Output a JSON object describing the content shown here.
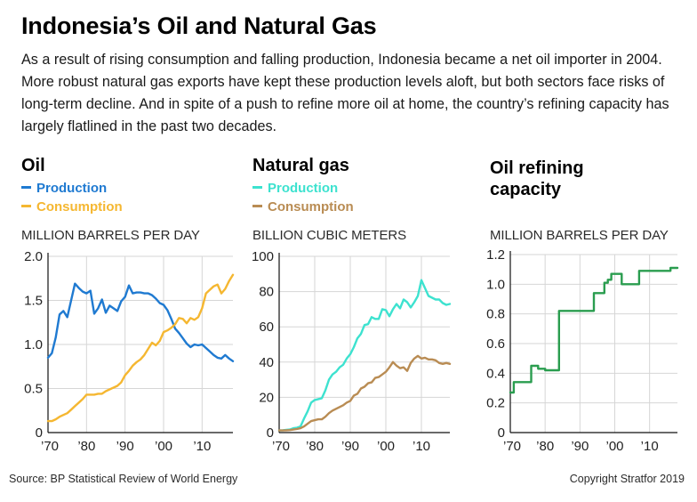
{
  "header": {
    "title": "Indonesia’s Oil and Natural Gas",
    "subtitle": "As a result of rising consumption and falling production, Indonesia became a net oil importer in 2004. More robust natural gas exports have kept these production levels aloft, but both sectors face risks of long-term decline. And in spite of a push to refine more oil at home, the country’s refining capacity has largely flatlined in the past two decades."
  },
  "footer": {
    "source": "Source: BP Statistical Review of World Energy",
    "copyright": "Copyright Stratfor 2019"
  },
  "colors": {
    "oil_production": "#1f7ad1",
    "oil_consumption": "#f5b731",
    "gas_production": "#3de2cf",
    "gas_consumption": "#b98c53",
    "refining": "#2a9d4f",
    "grid": "#d6d6d6",
    "axis": "#111111"
  },
  "chart_data": [
    {
      "type": "line",
      "title": "Oil",
      "ylabel": "MILLION BARRELS PER DAY",
      "ylim": [
        0,
        2.0
      ],
      "yticks": [
        "0",
        "0.5",
        "1.0",
        "1.5",
        "2.0"
      ],
      "xlim": [
        1970,
        2018
      ],
      "xticks": [
        "’70",
        "’80",
        "’90",
        "’00",
        "’10"
      ],
      "grid": true,
      "series": [
        {
          "name": "Production",
          "x": [
            1970,
            1971,
            1972,
            1973,
            1974,
            1975,
            1976,
            1977,
            1978,
            1979,
            1980,
            1981,
            1982,
            1983,
            1984,
            1985,
            1986,
            1987,
            1988,
            1989,
            1990,
            1991,
            1992,
            1993,
            1994,
            1995,
            1996,
            1997,
            1998,
            1999,
            2000,
            2001,
            2002,
            2003,
            2004,
            2005,
            2006,
            2007,
            2008,
            2009,
            2010,
            2011,
            2012,
            2013,
            2014,
            2015,
            2016,
            2017,
            2018
          ],
          "values": [
            0.85,
            0.9,
            1.08,
            1.34,
            1.38,
            1.31,
            1.5,
            1.69,
            1.64,
            1.6,
            1.58,
            1.61,
            1.35,
            1.41,
            1.51,
            1.36,
            1.44,
            1.41,
            1.38,
            1.49,
            1.54,
            1.67,
            1.58,
            1.59,
            1.59,
            1.58,
            1.58,
            1.56,
            1.52,
            1.47,
            1.45,
            1.39,
            1.29,
            1.18,
            1.13,
            1.07,
            1.01,
            0.97,
            1.0,
            0.99,
            1.0,
            0.96,
            0.92,
            0.88,
            0.85,
            0.84,
            0.88,
            0.84,
            0.81
          ]
        },
        {
          "name": "Consumption",
          "x": [
            1970,
            1971,
            1972,
            1973,
            1974,
            1975,
            1976,
            1977,
            1978,
            1979,
            1980,
            1981,
            1982,
            1983,
            1984,
            1985,
            1986,
            1987,
            1988,
            1989,
            1990,
            1991,
            1992,
            1993,
            1994,
            1995,
            1996,
            1997,
            1998,
            1999,
            2000,
            2001,
            2002,
            2003,
            2004,
            2005,
            2006,
            2007,
            2008,
            2009,
            2010,
            2011,
            2012,
            2013,
            2014,
            2015,
            2016,
            2017,
            2018
          ],
          "values": [
            0.13,
            0.13,
            0.15,
            0.18,
            0.2,
            0.22,
            0.26,
            0.3,
            0.34,
            0.38,
            0.43,
            0.43,
            0.43,
            0.44,
            0.44,
            0.47,
            0.49,
            0.51,
            0.53,
            0.57,
            0.65,
            0.7,
            0.76,
            0.8,
            0.83,
            0.88,
            0.95,
            1.02,
            0.99,
            1.04,
            1.14,
            1.16,
            1.19,
            1.23,
            1.3,
            1.29,
            1.24,
            1.3,
            1.28,
            1.31,
            1.41,
            1.58,
            1.62,
            1.66,
            1.68,
            1.58,
            1.63,
            1.72,
            1.79
          ]
        }
      ]
    },
    {
      "type": "line",
      "title": "Natural gas",
      "ylabel": "BILLION CUBIC METERS",
      "ylim": [
        0,
        100
      ],
      "yticks": [
        "0",
        "20",
        "40",
        "60",
        "80",
        "100"
      ],
      "xlim": [
        1970,
        2018
      ],
      "xticks": [
        "’70",
        "’80",
        "’90",
        "’00",
        "’10"
      ],
      "grid": true,
      "series": [
        {
          "name": "Production",
          "x": [
            1970,
            1971,
            1972,
            1973,
            1974,
            1975,
            1976,
            1977,
            1978,
            1979,
            1980,
            1981,
            1982,
            1983,
            1984,
            1985,
            1986,
            1987,
            1988,
            1989,
            1990,
            1991,
            1992,
            1993,
            1994,
            1995,
            1996,
            1997,
            1998,
            1999,
            2000,
            2001,
            2002,
            2003,
            2004,
            2005,
            2006,
            2007,
            2008,
            2009,
            2010,
            2011,
            2012,
            2013,
            2014,
            2015,
            2016,
            2017,
            2018
          ],
          "values": [
            1.2,
            1.3,
            1.5,
            1.7,
            2.5,
            2.8,
            3.5,
            8,
            12,
            17,
            18.5,
            19,
            19.5,
            24,
            30,
            33,
            34.5,
            37,
            38.5,
            42,
            44.5,
            48.5,
            53.5,
            56,
            61,
            61.5,
            65.5,
            64.5,
            64.5,
            70,
            69.5,
            66,
            70,
            73,
            70.5,
            75.5,
            74,
            71,
            74,
            77.5,
            86.5,
            82,
            77.5,
            76.5,
            75.5,
            75.5,
            73.5,
            72.5,
            73
          ]
        },
        {
          "name": "Consumption",
          "x": [
            1970,
            1971,
            1972,
            1973,
            1974,
            1975,
            1976,
            1977,
            1978,
            1979,
            1980,
            1981,
            1982,
            1983,
            1984,
            1985,
            1986,
            1987,
            1988,
            1989,
            1990,
            1991,
            1992,
            1993,
            1994,
            1995,
            1996,
            1997,
            1998,
            1999,
            2000,
            2001,
            2002,
            2003,
            2004,
            2005,
            2006,
            2007,
            2008,
            2009,
            2010,
            2011,
            2012,
            2013,
            2014,
            2015,
            2016,
            2017,
            2018
          ],
          "values": [
            1.2,
            1.2,
            1.3,
            1.4,
            1.7,
            2,
            2.5,
            3.5,
            5,
            6.5,
            7,
            7.5,
            7.5,
            9,
            11,
            12.5,
            13.5,
            14.5,
            15.5,
            17,
            18,
            21,
            22,
            25,
            26,
            28,
            28.5,
            31,
            31.5,
            33,
            34.5,
            37,
            40,
            38,
            36.5,
            37,
            35,
            39.5,
            42,
            43.5,
            42,
            42.5,
            41.5,
            41.5,
            41,
            39.5,
            39,
            39.5,
            39
          ]
        }
      ]
    },
    {
      "type": "line",
      "title": "Oil refining capacity",
      "ylabel": "MILLION BARRELS PER DAY",
      "ylim": [
        0,
        1.2
      ],
      "yticks": [
        "0",
        "0.2",
        "0.4",
        "0.6",
        "0.8",
        "1.0",
        "1.2"
      ],
      "xlim": [
        1970,
        2018
      ],
      "xticks": [
        "’70",
        "’80",
        "’90",
        "’00",
        "’10"
      ],
      "grid": true,
      "series": [
        {
          "name": "",
          "x": [
            1970,
            1971,
            1972,
            1973,
            1974,
            1975,
            1976,
            1977,
            1978,
            1979,
            1980,
            1981,
            1982,
            1983,
            1984,
            1985,
            1986,
            1987,
            1988,
            1989,
            1990,
            1991,
            1992,
            1993,
            1994,
            1995,
            1996,
            1997,
            1998,
            1999,
            2000,
            2001,
            2002,
            2003,
            2004,
            2005,
            2006,
            2007,
            2008,
            2009,
            2010,
            2011,
            2012,
            2013,
            2014,
            2015,
            2016,
            2017,
            2018
          ],
          "values": [
            0.27,
            0.34,
            0.34,
            0.34,
            0.34,
            0.34,
            0.45,
            0.45,
            0.43,
            0.43,
            0.42,
            0.42,
            0.42,
            0.42,
            0.82,
            0.82,
            0.82,
            0.82,
            0.82,
            0.82,
            0.82,
            0.82,
            0.82,
            0.82,
            0.94,
            0.94,
            0.94,
            1.01,
            1.03,
            1.07,
            1.07,
            1.07,
            1.0,
            1.0,
            1.0,
            1.0,
            1.0,
            1.09,
            1.09,
            1.09,
            1.09,
            1.09,
            1.09,
            1.09,
            1.09,
            1.09,
            1.11,
            1.11,
            1.11
          ]
        }
      ]
    }
  ]
}
